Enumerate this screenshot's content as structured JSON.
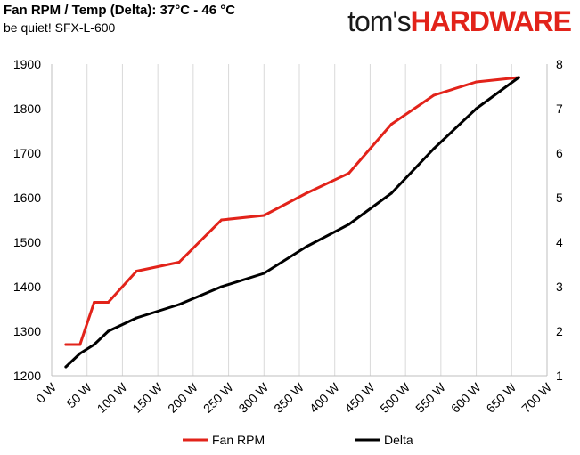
{
  "header": {
    "title": "Fan RPM / Temp (Delta): 37°C - 46 °C",
    "subtitle": "be quiet! SFX-L-600"
  },
  "brand": {
    "part1": "tom's",
    "part2": "HARDWARE",
    "accent_color": "#e2231a"
  },
  "chart_data": {
    "type": "line",
    "title": "Fan RPM / Temp (Delta): 37°C - 46 °C",
    "subtitle": "be quiet! SFX-L-600",
    "x_tick_labels": [
      "0 W",
      "50 W",
      "100 W",
      "150 W",
      "200 W",
      "250 W",
      "300 W",
      "350 W",
      "400 W",
      "450 W",
      "500 W",
      "550 W",
      "600 W",
      "650 W",
      "700 W"
    ],
    "xlim": [
      0,
      700
    ],
    "y_left_ticks": [
      1200,
      1300,
      1400,
      1500,
      1600,
      1700,
      1800,
      1900
    ],
    "ylim_left": [
      1200,
      1900
    ],
    "y_right_ticks": [
      1,
      2,
      3,
      4,
      5,
      6,
      7,
      8
    ],
    "ylim_right": [
      1,
      8
    ],
    "grid": "vertical",
    "legend_position": "bottom",
    "series": [
      {
        "name": "Fan RPM",
        "axis": "left",
        "color": "#e2231a",
        "x": [
          20,
          40,
          60,
          80,
          120,
          180,
          240,
          300,
          360,
          420,
          480,
          540,
          600,
          660
        ],
        "values": [
          1270,
          1270,
          1365,
          1365,
          1435,
          1455,
          1550,
          1560,
          1610,
          1655,
          1765,
          1830,
          1860,
          1870
        ]
      },
      {
        "name": "Delta",
        "axis": "right",
        "color": "#000000",
        "x": [
          20,
          40,
          60,
          80,
          120,
          180,
          240,
          300,
          360,
          420,
          480,
          540,
          600,
          660
        ],
        "values": [
          1.2,
          1.5,
          1.7,
          2.0,
          2.3,
          2.6,
          3.0,
          3.3,
          3.9,
          4.4,
          5.1,
          6.1,
          7.0,
          7.7
        ]
      }
    ]
  }
}
